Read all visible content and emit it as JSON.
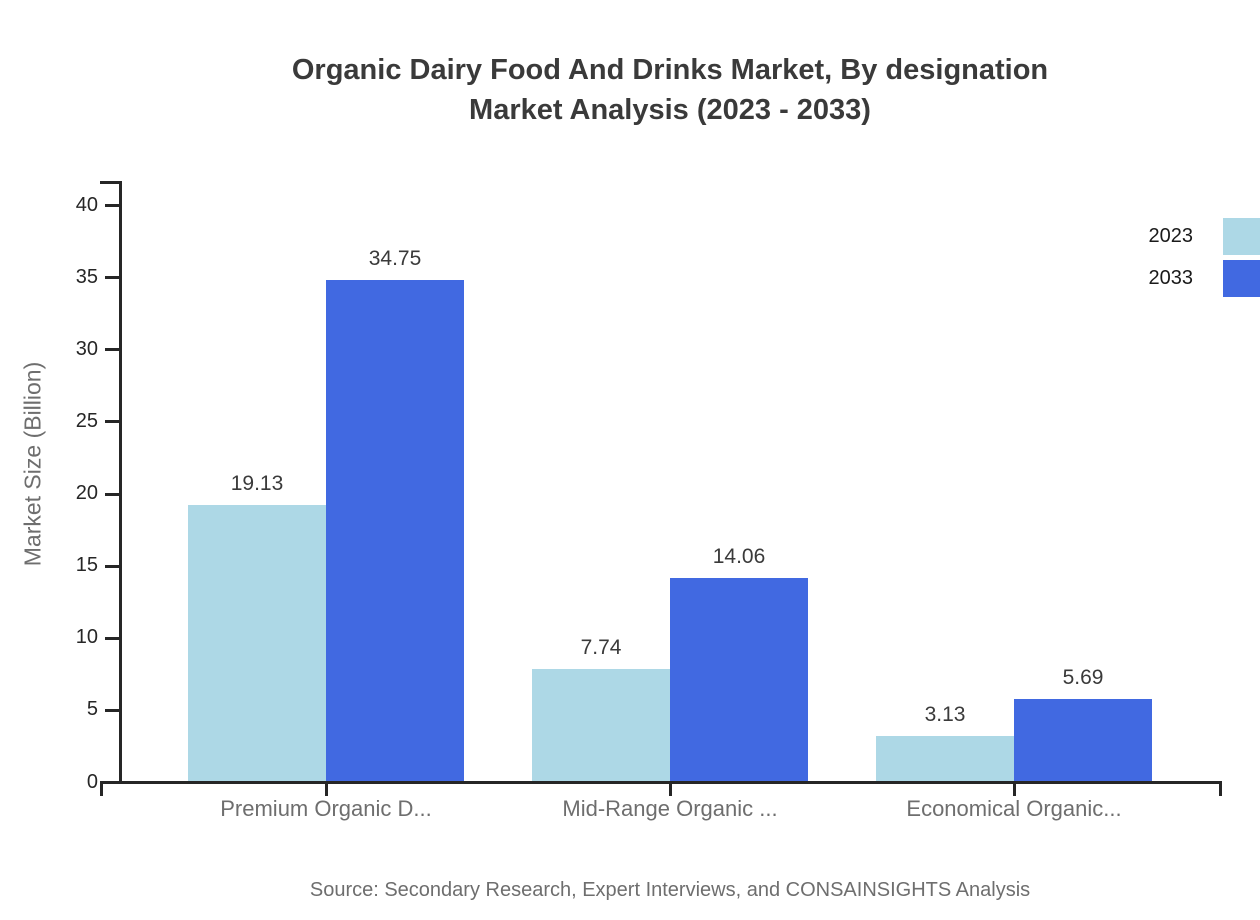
{
  "title": {
    "line1": "Organic Dairy Food And Drinks Market, By designation",
    "line2": "Market Analysis (2023 - 2033)"
  },
  "source_text": "Source: Secondary Research, Expert Interviews, and CONSAINSIGHTS Analysis",
  "chart_data": {
    "type": "bar",
    "title": "Organic Dairy Food And Drinks Market, By designation Market Analysis (2023 - 2033)",
    "categories": [
      "Premium Organic D...",
      "Mid-Range Organic ...",
      "Economical Organic..."
    ],
    "series": [
      {
        "name": "2023",
        "color": "#ADD8E6",
        "values": [
          19.13,
          7.74,
          3.13
        ]
      },
      {
        "name": "2033",
        "color": "#4169E1",
        "values": [
          34.75,
          14.06,
          5.69
        ]
      }
    ],
    "value_labels": [
      "19.13",
      "34.75",
      "7.74",
      "14.06",
      "3.13",
      "5.69"
    ],
    "xlabel": "",
    "ylabel": "Market Size (Billion)",
    "ylim": [
      0,
      40
    ],
    "yticks": [
      0,
      5,
      10,
      15,
      20,
      25,
      30,
      35,
      40
    ],
    "grid": false,
    "legend_position": "top-right"
  },
  "colors": {
    "series_2023": "#ADD8E6",
    "series_2033": "#4169E1",
    "axis": "#262626",
    "title_text": "#3a3a3a",
    "muted_text": "#6e6e6e"
  }
}
